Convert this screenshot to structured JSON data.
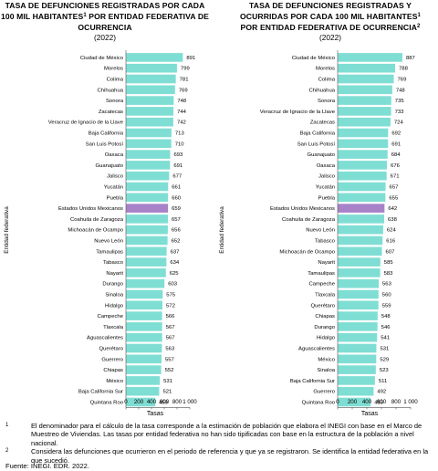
{
  "chart_data": [
    {
      "type": "bar",
      "orientation": "horizontal",
      "title_line1": "TASA DE DEFUNCIONES REGISTRADAS POR CADA",
      "title_line2_pre": "100 MIL HABITANTES",
      "title_line2_sup": "1",
      "title_line2_post": " POR ENTIDAD FEDERATIVA DE",
      "title_line3": "OCURRENCIA",
      "subtitle": "(2022)",
      "ylabel": "Entidad federativa",
      "xlabel": "Tasas",
      "xticks": [
        "0",
        "200",
        "400",
        "600",
        "800",
        "1 000"
      ],
      "xlim": [
        0,
        1000
      ],
      "highlight": "Estados Unidos Mexicanos",
      "categories": [
        "Ciudad de México",
        "Morelos",
        "Colima",
        "Chihuahua",
        "Sonora",
        "Zacatecas",
        "Veracruz de Ignacio de la Llave",
        "Baja California",
        "San Luis Potosí",
        "Oaxaca",
        "Guanajuato",
        "Jalisco",
        "Yucatán",
        "Puebla",
        "Estados Unidos Mexicanos",
        "Coahuila de Zaragoza",
        "Michoacán de Ocampo",
        "Nuevo León",
        "Tamaulipas",
        "Tabasco",
        "Nayarit",
        "Durango",
        "Sinaloa",
        "Hidalgo",
        "Campeche",
        "Tlaxcala",
        "Aguascalientes",
        "Querétaro",
        "Guerrero",
        "Chiapas",
        "México",
        "Baja California Sur",
        "Quintana Roo"
      ],
      "values": [
        891,
        799,
        781,
        769,
        748,
        744,
        742,
        713,
        710,
        693,
        691,
        677,
        661,
        660,
        659,
        657,
        656,
        652,
        637,
        634,
        625,
        603,
        575,
        572,
        566,
        567,
        567,
        563,
        557,
        552,
        531,
        521,
        459
      ]
    },
    {
      "type": "bar",
      "orientation": "horizontal",
      "title_line1": "TASA DE DEFUNCIONES REGISTRADAS Y",
      "title_line2_pre": "OCURRIDAS POR CADA 100 MIL HABITANTES",
      "title_line2_sup": "1",
      "title_line2_post": "",
      "title_line3": "POR ENTIDAD FEDERATIVA DE OCURRENCIA",
      "title_line3_sup": "2",
      "subtitle": "(2022)",
      "ylabel": "Entidad federativa",
      "xlabel": "Tasas",
      "xticks": [
        "0",
        "200",
        "400",
        "600",
        "800",
        "1 000"
      ],
      "xlim": [
        0,
        1000
      ],
      "highlight": "Estados Unidos Mexicanos",
      "categories": [
        "Ciudad de México",
        "Morelos",
        "Colima",
        "Chihuahua",
        "Sonora",
        "Veracruz de Ignacio de la Llave",
        "Zacatecas",
        "Baja California",
        "San Luis Potosí",
        "Guanajuato",
        "Oaxaca",
        "Jalisco",
        "Yucatán",
        "Puebla",
        "Estados Unidos Mexicanos",
        "Coahuila de Zaragoza",
        "Nuevo León",
        "Tabasco",
        "Michoacán de Ocampo",
        "Nayarit",
        "Tamaulipas",
        "Campeche",
        "Tlaxcala",
        "Querétaro",
        "Chiapas",
        "Durango",
        "Hidalgo",
        "Aguascalientes",
        "México",
        "Sinaloa",
        "Baja California Sur",
        "Guerrero",
        "Quintana Roo"
      ],
      "values": [
        887,
        788,
        769,
        748,
        735,
        733,
        724,
        692,
        691,
        684,
        676,
        671,
        657,
        655,
        642,
        638,
        624,
        616,
        607,
        585,
        583,
        563,
        560,
        559,
        548,
        546,
        541,
        531,
        529,
        523,
        511,
        492,
        453
      ]
    }
  ],
  "colors": {
    "bar": "#7fded4",
    "highlight": "#a782c9"
  },
  "notes": [
    {
      "mark": "1",
      "text": "El denominador para el cálculo de la tasa corresponde a la estimación de población que elabora el INEGI con base en el Marco de Muestreo de Viviendas. Las tasas por entidad federativa no han sido tipificadas con base en la estructura de la población a nivel nacional."
    },
    {
      "mark": "2",
      "text": "Considera las defunciones que ocurrieron en el periodo de referencia y que ya se registraron. Se identifica la entidad federativa en la que sucedió."
    }
  ],
  "source": "Fuente: INEGI. EDR. 2022."
}
